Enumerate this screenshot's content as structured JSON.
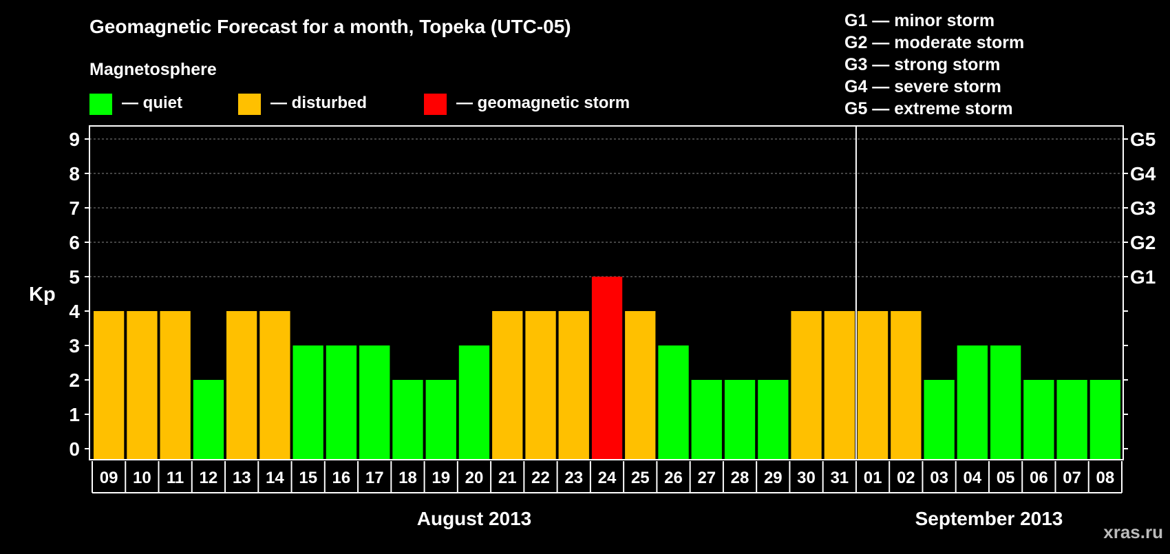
{
  "title": "Geomagnetic Forecast for a month, Topeka (UTC-05)",
  "watermark": "xras.ru",
  "magnetosphere": {
    "heading": "Magnetosphere",
    "legend": [
      {
        "label": "— quiet",
        "color": "#00ff00"
      },
      {
        "label": "— disturbed",
        "color": "#ffc000"
      },
      {
        "label": "— geomagnetic storm",
        "color": "#ff0000"
      }
    ]
  },
  "storm_scale": [
    "G1 — minor storm",
    "G2 — moderate storm",
    "G3 — strong storm",
    "G4 — severe storm",
    "G5 — extreme storm"
  ],
  "colors": {
    "quiet": "#00ff00",
    "disturbed": "#ffc000",
    "storm": "#ff0000",
    "background": "#000000",
    "grid": "#888888",
    "frame": "#ffffff"
  },
  "chart_data": {
    "type": "bar",
    "title": "Geomagnetic Forecast for a month, Topeka (UTC-05)",
    "xlabel": "",
    "ylabel": "Kp",
    "ylim": [
      0,
      9.3
    ],
    "yticks": [
      "0",
      "1",
      "2",
      "3",
      "4",
      "5",
      "6",
      "7",
      "8",
      "9"
    ],
    "right_axis_labels": [
      {
        "value": 5,
        "label": "G1"
      },
      {
        "value": 6,
        "label": "G2"
      },
      {
        "value": 7,
        "label": "G3"
      },
      {
        "value": 8,
        "label": "G4"
      },
      {
        "value": 9,
        "label": "G5"
      }
    ],
    "grid": true,
    "categories": [
      "09",
      "10",
      "11",
      "12",
      "13",
      "14",
      "15",
      "16",
      "17",
      "18",
      "19",
      "20",
      "21",
      "22",
      "23",
      "24",
      "25",
      "26",
      "27",
      "28",
      "29",
      "30",
      "31",
      "01",
      "02",
      "03",
      "04",
      "05",
      "06",
      "07",
      "08"
    ],
    "values": [
      4,
      4,
      4,
      2,
      4,
      4,
      3,
      3,
      3,
      2,
      2,
      3,
      4,
      4,
      4,
      5,
      4,
      3,
      2,
      2,
      2,
      4,
      4,
      4,
      4,
      2,
      3,
      3,
      2,
      2,
      2
    ],
    "months": [
      {
        "label": "August 2013",
        "start_index": 0,
        "end_index": 22
      },
      {
        "label": "September 2013",
        "start_index": 23,
        "end_index": 30
      }
    ],
    "separator_after_index": 22
  }
}
